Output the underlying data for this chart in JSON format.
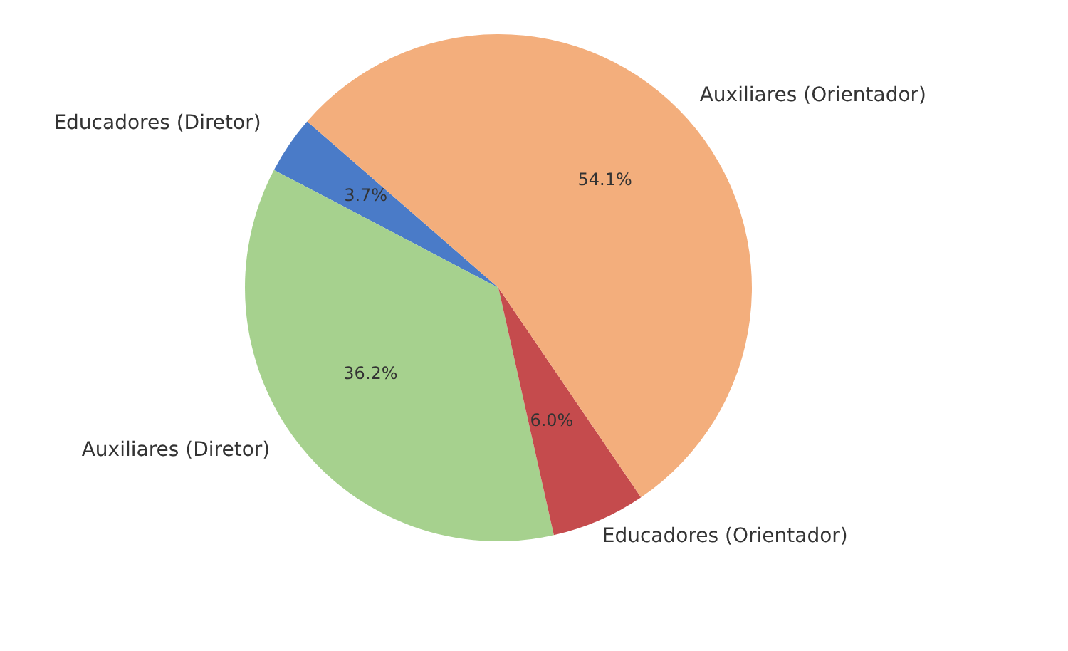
{
  "chart_data": {
    "type": "pie",
    "categories": [
      "Educadores (Diretor)",
      "Auxiliares (Diretor)",
      "Educadores (Orientador)",
      "Auxiliares (Orientador)"
    ],
    "values": [
      3.7,
      36.2,
      6.0,
      54.1
    ],
    "colors": [
      "#4a7bc8",
      "#a6d18e",
      "#c54b4d",
      "#f3ae7c"
    ],
    "value_labels": [
      "3.7%",
      "36.2%",
      "6.0%",
      "54.1%"
    ]
  }
}
